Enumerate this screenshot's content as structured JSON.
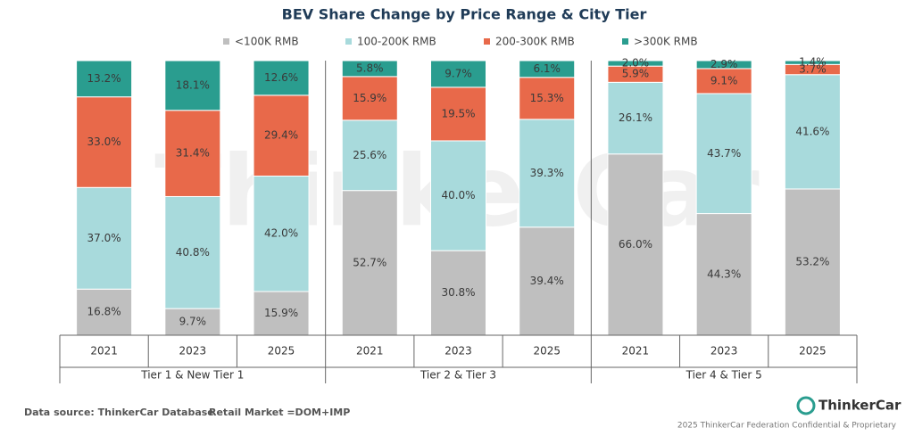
{
  "chart_data": {
    "type": "stacked_bar",
    "title": "BEV Share Change by Price Range & City Tier",
    "categories": [
      "2021",
      "2023",
      "2025",
      "2021",
      "2023",
      "2025",
      "2021",
      "2023",
      "2025"
    ],
    "groups": [
      "Tier 1 & New Tier 1",
      "Tier 2 & Tier 3",
      "Tier 4 & Tier 5"
    ],
    "group_size": 3,
    "series": [
      {
        "name": "<100K RMB",
        "color": "#bfbfbf",
        "values": [
          16.8,
          9.7,
          15.9,
          52.7,
          30.8,
          39.4,
          66.0,
          44.3,
          53.2
        ],
        "value_labels": [
          "16.8%",
          "9.7%",
          "15.9%",
          "52.7%",
          "30.8%",
          "39.4%",
          "66.0%",
          "44.3%",
          "53.2%"
        ]
      },
      {
        "name": "100-200K RMB",
        "color": "#a8dadc",
        "values": [
          37.0,
          40.8,
          42.0,
          25.6,
          40.0,
          39.3,
          26.1,
          43.7,
          41.6
        ],
        "value_labels": [
          "37.0%",
          "40.8%",
          "42.0%",
          "25.6%",
          "40.0%",
          "39.3%",
          "26.1%",
          "43.7%",
          "41.6%"
        ]
      },
      {
        "name": "200-300K RMB",
        "color": "#e8694a",
        "values": [
          33.0,
          31.4,
          29.4,
          15.9,
          19.5,
          15.3,
          5.9,
          9.1,
          3.7
        ],
        "value_labels": [
          "33.0%",
          "31.4%",
          "29.4%",
          "15.9%",
          "19.5%",
          "15.3%",
          "5.9%",
          "9.1%",
          "3.7%"
        ]
      },
      {
        "name": ">300K RMB",
        "color": "#2a9d8f",
        "values": [
          13.2,
          18.1,
          12.6,
          5.8,
          9.7,
          6.1,
          2.0,
          2.9,
          1.4
        ],
        "value_labels": [
          "13.2%",
          "18.1%",
          "12.6%",
          "5.8%",
          "9.7%",
          "6.1%",
          "2.0%",
          "2.9%",
          "1.4%"
        ]
      }
    ]
  },
  "watermark": "ThinkerCar",
  "footer": {
    "source": "Data source: ThinkerCar Database",
    "note": "Retail Market =DOM+IMP",
    "logo": "ThinkerCar",
    "copyright": "2025 ThinkerCar Federation Confidential & Proprietary"
  }
}
